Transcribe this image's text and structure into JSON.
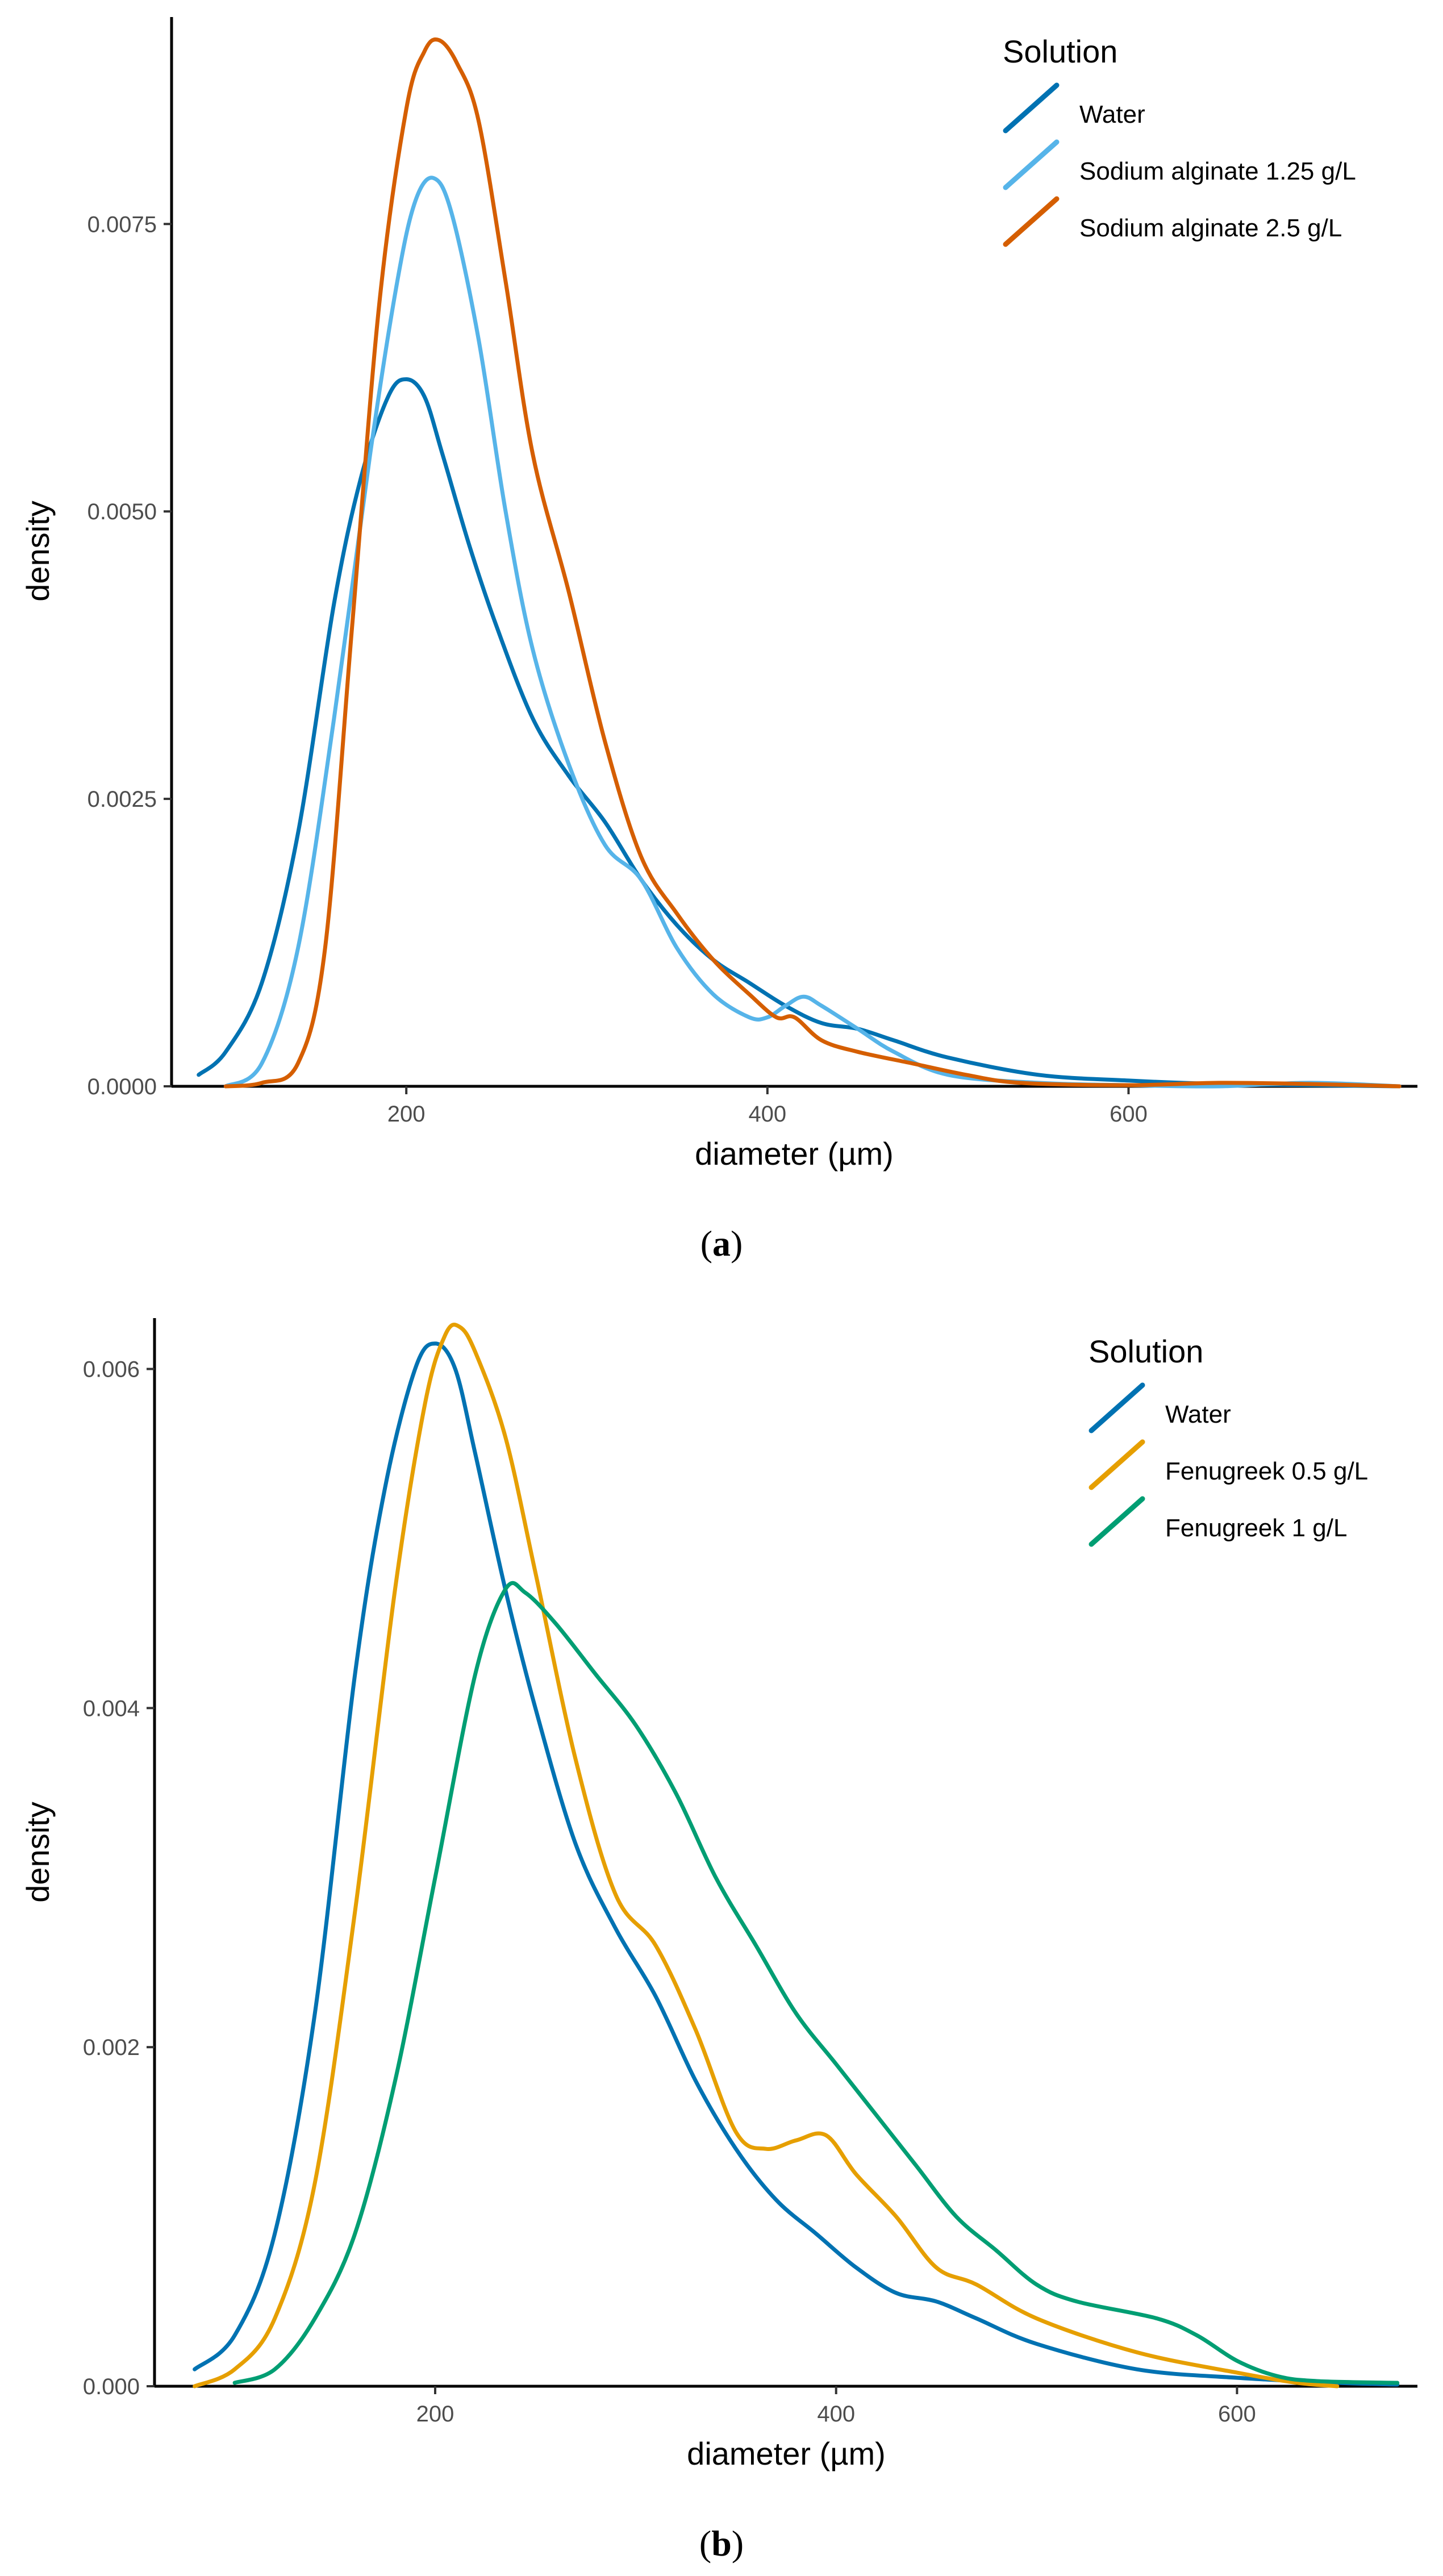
{
  "chart_data": [
    {
      "type": "line",
      "panel": "a",
      "xlabel": "diameter (µm)",
      "ylabel": "density",
      "xlim": [
        70,
        760
      ],
      "ylim": [
        0,
        0.0093
      ],
      "xticks": [
        200,
        400,
        600
      ],
      "xtick_labels": [
        "200",
        "400",
        "600"
      ],
      "yticks": [
        0,
        0.0025,
        0.005,
        0.0075
      ],
      "ytick_labels": [
        "0.0000",
        "0.0025",
        "0.0050",
        "0.0075"
      ],
      "legend_title": "Solution",
      "legend_position": "top-right",
      "series": [
        {
          "name": "Water",
          "color": "#0072B2",
          "x": [
            85,
            100,
            120,
            140,
            160,
            175,
            190,
            200,
            210,
            220,
            235,
            250,
            270,
            290,
            310,
            330,
            350,
            370,
            390,
            410,
            430,
            450,
            470,
            500,
            550,
            600,
            650,
            700,
            750
          ],
          "y": [
            0.0001,
            0.0003,
            0.0009,
            0.0022,
            0.0042,
            0.0053,
            0.006,
            0.00615,
            0.006,
            0.0055,
            0.0047,
            0.004,
            0.0032,
            0.0027,
            0.0023,
            0.0018,
            0.0014,
            0.0011,
            0.0009,
            0.0007,
            0.00055,
            0.0005,
            0.0004,
            0.00025,
            0.0001,
            5e-05,
            2e-05,
            1e-05,
            0.0
          ]
        },
        {
          "name": "Sodium alginate 1.25 g/L",
          "color": "#56B4E9",
          "x": [
            100,
            120,
            140,
            160,
            180,
            195,
            205,
            215,
            225,
            240,
            255,
            270,
            290,
            310,
            330,
            350,
            370,
            390,
            400,
            410,
            420,
            430,
            450,
            470,
            500,
            550,
            600,
            650,
            700,
            750
          ],
          "y": [
            0.0,
            0.0002,
            0.0012,
            0.0032,
            0.0055,
            0.007,
            0.0077,
            0.0079,
            0.0076,
            0.0065,
            0.005,
            0.0038,
            0.0028,
            0.0021,
            0.0018,
            0.0012,
            0.0008,
            0.0006,
            0.0006,
            0.0007,
            0.00078,
            0.0007,
            0.0005,
            0.0003,
            0.0001,
            3e-05,
            1e-05,
            0.0,
            3e-05,
            0.0
          ]
        },
        {
          "name": "Sodium alginate 2.5 g/L",
          "color": "#D55E00",
          "x": [
            100,
            120,
            140,
            155,
            170,
            185,
            200,
            210,
            218,
            228,
            240,
            255,
            270,
            290,
            310,
            330,
            350,
            370,
            390,
            405,
            415,
            430,
            450,
            480,
            510,
            540,
            600,
            650,
            700,
            750
          ],
          "y": [
            0.0,
            3e-05,
            0.0002,
            0.0012,
            0.004,
            0.0068,
            0.0085,
            0.009,
            0.0091,
            0.0089,
            0.0084,
            0.007,
            0.0055,
            0.0043,
            0.003,
            0.002,
            0.0015,
            0.0011,
            0.0008,
            0.0006,
            0.0006,
            0.0004,
            0.0003,
            0.0002,
            0.0001,
            3e-05,
            1e-05,
            3e-05,
            2e-05,
            0.0
          ]
        }
      ]
    },
    {
      "type": "line",
      "panel": "b",
      "xlabel": "diameter (µm)",
      "ylabel": "density",
      "xlim": [
        60,
        690
      ],
      "ylim": [
        0,
        0.0063
      ],
      "xticks": [
        200,
        400,
        600
      ],
      "xtick_labels": [
        "200",
        "400",
        "600"
      ],
      "yticks": [
        0,
        0.002,
        0.004,
        0.006
      ],
      "ytick_labels": [
        "0.000",
        "0.002",
        "0.004",
        "0.006"
      ],
      "legend_title": "Solution",
      "legend_position": "top-right",
      "series": [
        {
          "name": "Water",
          "color": "#0072B2",
          "x": [
            80,
            100,
            120,
            140,
            160,
            175,
            190,
            200,
            210,
            220,
            235,
            250,
            270,
            290,
            310,
            330,
            350,
            370,
            390,
            410,
            430,
            450,
            470,
            500,
            550,
            600,
            650,
            680
          ],
          "y": [
            0.0001,
            0.0003,
            0.0009,
            0.0022,
            0.0042,
            0.0053,
            0.006,
            0.00615,
            0.006,
            0.0055,
            0.0047,
            0.004,
            0.0032,
            0.0027,
            0.0023,
            0.0018,
            0.0014,
            0.0011,
            0.0009,
            0.0007,
            0.00055,
            0.0005,
            0.0004,
            0.00025,
            0.0001,
            5e-05,
            2e-05,
            1e-05
          ]
        },
        {
          "name": "Fenugreek 0.5 g/L",
          "color": "#E69F00",
          "x": [
            80,
            100,
            120,
            140,
            160,
            180,
            195,
            205,
            212,
            220,
            235,
            250,
            270,
            290,
            310,
            330,
            350,
            365,
            380,
            395,
            410,
            430,
            450,
            470,
            500,
            550,
            600,
            630,
            650
          ],
          "y": [
            0.0,
            0.0001,
            0.0004,
            0.0012,
            0.0028,
            0.0047,
            0.0058,
            0.0062,
            0.00625,
            0.0061,
            0.0056,
            0.0048,
            0.0037,
            0.0029,
            0.0026,
            0.0021,
            0.0015,
            0.0014,
            0.00145,
            0.00148,
            0.00125,
            0.001,
            0.0007,
            0.0006,
            0.0004,
            0.0002,
            8e-05,
            2e-05,
            0.0
          ]
        },
        {
          "name": "Fenugreek 1 g/L",
          "color": "#009E73",
          "x": [
            100,
            120,
            140,
            160,
            180,
            200,
            220,
            235,
            245,
            260,
            280,
            300,
            320,
            340,
            360,
            380,
            400,
            420,
            440,
            460,
            480,
            500,
            520,
            560,
            580,
            600,
            620,
            640,
            680
          ],
          "y": [
            2e-05,
            0.0001,
            0.0004,
            0.0009,
            0.0018,
            0.003,
            0.0042,
            0.0047,
            0.00468,
            0.0045,
            0.0042,
            0.0039,
            0.0035,
            0.003,
            0.0026,
            0.0022,
            0.0019,
            0.0016,
            0.0013,
            0.001,
            0.0008,
            0.0006,
            0.0005,
            0.0004,
            0.0003,
            0.00015,
            6e-05,
            3e-05,
            2e-05
          ]
        }
      ]
    }
  ],
  "panels": [
    {
      "label_open": "(",
      "label_letter": "a",
      "label_close": ")"
    },
    {
      "label_open": "(",
      "label_letter": "b",
      "label_close": ")"
    }
  ]
}
